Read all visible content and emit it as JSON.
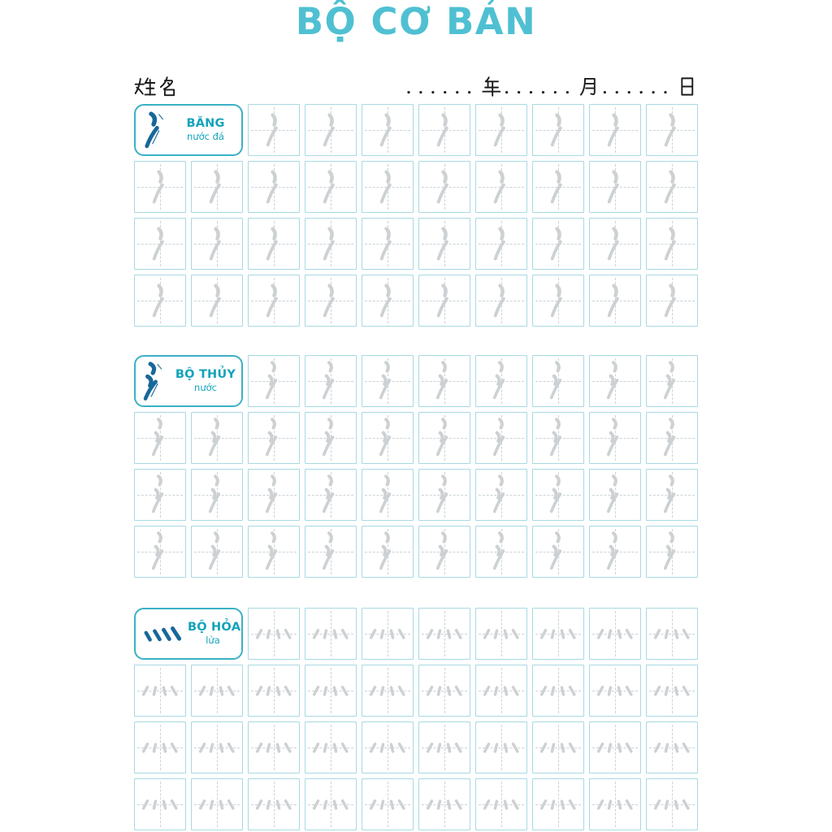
{
  "page": {
    "title": "BỘ CƠ BẢN"
  },
  "header": {
    "name_label": "姓名",
    "date_line": {
      "dots": "......",
      "year": "年",
      "month": "月",
      "day": "日"
    }
  },
  "colors": {
    "title_teal": "#4fc0d2",
    "label_teal": "#14a3ba",
    "label_border": "#3ab1c4",
    "radical_blue": "#17689a",
    "cell_border": "#a8d9e2",
    "guide_dash": "#c9d3d7",
    "trace_gray": "#cdd1d3",
    "text_black": "#1b1b1b"
  },
  "sections": [
    {
      "id": "bang",
      "radical_char": "冫",
      "radical_icon": "ice-radical-trace-icon",
      "label_icon": "ice-radical-stroke-order-icon",
      "name": "BĂNG",
      "meaning": "nước đá",
      "rows": 4,
      "cols": 10,
      "label_col_span": 2,
      "practice_cells": 38
    },
    {
      "id": "thuy",
      "radical_char": "氵",
      "radical_icon": "water-radical-trace-icon",
      "label_icon": "water-radical-stroke-order-icon",
      "name": "BỘ THỦY",
      "meaning": "nước",
      "rows": 4,
      "cols": 10,
      "label_col_span": 2,
      "practice_cells": 38
    },
    {
      "id": "hoa",
      "radical_char": "灬",
      "radical_icon": "fire-radical-trace-icon",
      "label_icon": "fire-radical-stroke-order-icon",
      "name": "BỘ HỎA",
      "meaning": "lửa",
      "rows": 4,
      "cols": 10,
      "label_col_span": 2,
      "practice_cells": 38
    }
  ]
}
